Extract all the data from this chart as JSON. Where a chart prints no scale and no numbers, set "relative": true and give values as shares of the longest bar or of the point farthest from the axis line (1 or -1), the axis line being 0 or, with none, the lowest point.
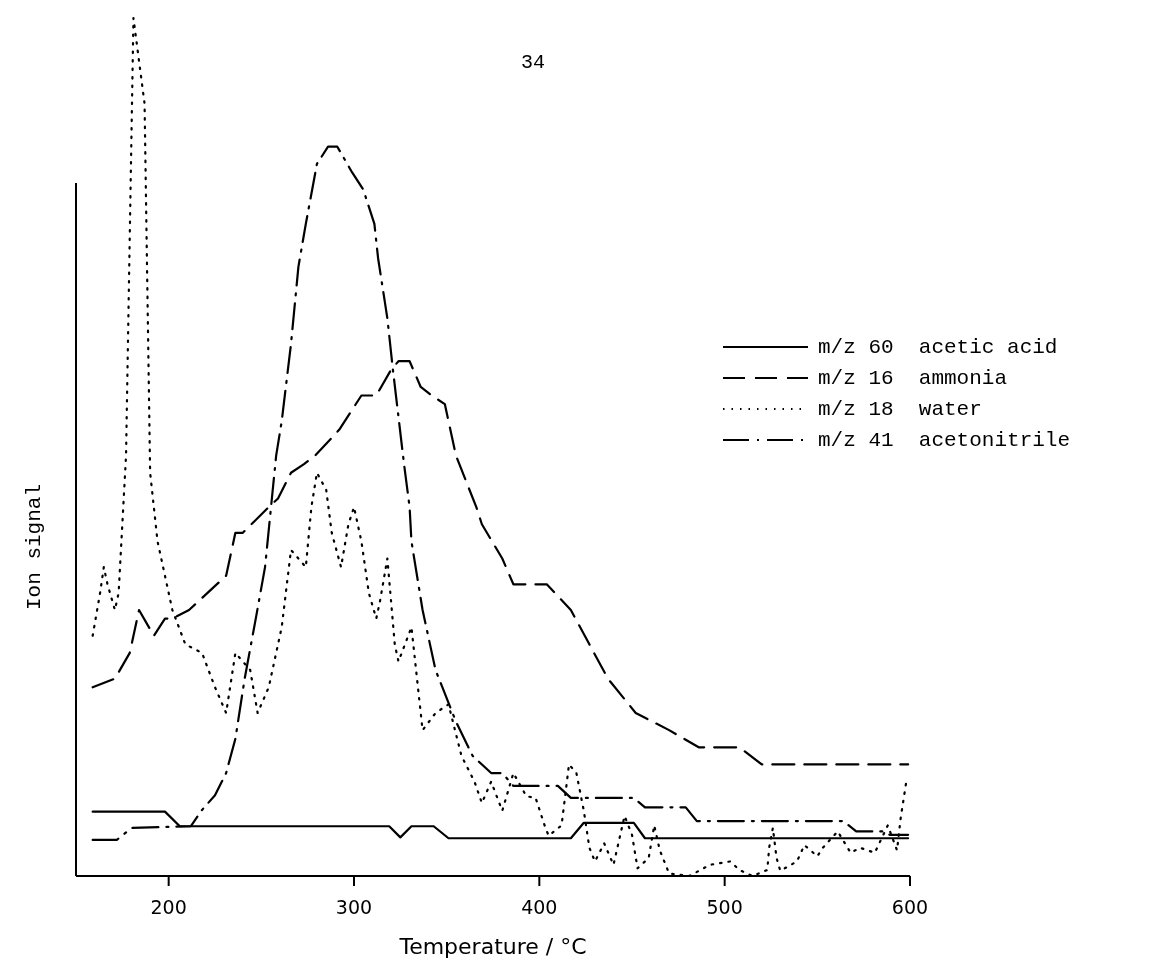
{
  "chart_data": {
    "type": "line",
    "xlabel": "Temperature / °C",
    "ylabel": "Ion signal",
    "annotations": [
      "34"
    ],
    "relative": true,
    "xlim": [
      150,
      600
    ],
    "xticks": [
      200,
      300,
      400,
      500,
      600
    ],
    "legend": "right",
    "grid": false,
    "marker": "none",
    "series": [
      {
        "name": "m/z 60  acetic acid",
        "color": "#000000",
        "line_style": "solid",
        "x": [
          159,
          198,
          206,
          319,
          325,
          331,
          343,
          351,
          417,
          424,
          451,
          457,
          599
        ],
        "values": [
          0.075,
          0.075,
          0.058,
          0.058,
          0.045,
          0.058,
          0.058,
          0.044,
          0.044,
          0.062,
          0.062,
          0.044,
          0.044
        ]
      },
      {
        "name": "m/z 16  ammonia",
        "color": "#000000",
        "line_style": "dashed",
        "x": [
          159,
          171,
          179,
          184,
          192,
          198,
          202,
          211,
          231,
          236,
          240,
          254,
          259,
          266,
          273,
          279,
          292,
          304,
          312,
          320,
          324,
          330,
          336,
          342,
          349,
          355,
          366,
          369,
          380,
          386,
          404,
          417,
          427,
          437,
          452,
          470,
          486,
          508,
          520,
          599
        ],
        "values": [
          0.22,
          0.23,
          0.26,
          0.31,
          0.28,
          0.3,
          0.3,
          0.31,
          0.35,
          0.4,
          0.4,
          0.43,
          0.44,
          0.47,
          0.48,
          0.49,
          0.52,
          0.56,
          0.56,
          0.59,
          0.6,
          0.6,
          0.57,
          0.56,
          0.55,
          0.49,
          0.43,
          0.41,
          0.37,
          0.34,
          0.34,
          0.31,
          0.27,
          0.23,
          0.19,
          0.17,
          0.15,
          0.15,
          0.13,
          0.13
        ]
      },
      {
        "name": "m/z 18  water",
        "color": "#000000",
        "line_style": "dotted",
        "x": [
          159,
          163,
          165,
          167,
          171,
          173,
          177,
          181,
          187,
          190,
          194,
          202,
          209,
          218,
          225,
          231,
          236,
          240,
          244,
          248,
          254,
          261,
          266,
          270,
          274,
          277,
          280,
          285,
          288,
          293,
          297,
          300,
          304,
          308,
          312,
          314,
          318,
          322,
          324,
          331,
          334,
          337,
          344,
          351,
          358,
          365,
          369,
          374,
          380,
          386,
          393,
          398,
          403,
          405,
          412,
          416,
          420,
          424,
          427,
          430,
          435,
          440,
          446,
          450,
          453,
          459,
          462,
          465,
          470,
          481,
          492,
          503,
          508,
          515,
          523,
          524,
          526,
          528,
          530,
          539,
          543,
          550,
          553,
          561,
          568,
          573,
          581,
          588,
          593,
          595,
          598
        ],
        "values": [
          0.28,
          0.33,
          0.36,
          0.34,
          0.31,
          0.33,
          0.49,
          1,
          0.9,
          0.47,
          0.39,
          0.31,
          0.27,
          0.26,
          0.22,
          0.19,
          0.26,
          0.25,
          0.24,
          0.19,
          0.22,
          0.29,
          0.38,
          0.37,
          0.36,
          0.43,
          0.47,
          0.45,
          0.4,
          0.36,
          0.41,
          0.43,
          0.39,
          0.33,
          0.3,
          0.32,
          0.37,
          0.27,
          0.25,
          0.29,
          0.23,
          0.17,
          0.19,
          0.2,
          0.14,
          0.11,
          0.085,
          0.11,
          0.076,
          0.12,
          0.093,
          0.091,
          0.058,
          0.047,
          0.059,
          0.13,
          0.12,
          0.076,
          0.033,
          0.017,
          0.038,
          0.013,
          0.07,
          0.048,
          0.009,
          0.021,
          0.059,
          0.03,
          0.003,
          0,
          0.013,
          0.017,
          0.007,
          0,
          0.007,
          0.033,
          0.056,
          0.021,
          0.006,
          0.017,
          0.036,
          0.023,
          0.033,
          0.052,
          0.027,
          0.033,
          0.027,
          0.059,
          0.03,
          0.068,
          0.11
        ]
      },
      {
        "name": "m/z 41  acetonitrile",
        "color": "#000000",
        "line_style": "dashdot",
        "x": [
          159,
          172,
          180,
          212,
          218,
          225,
          231,
          236,
          241,
          247,
          252,
          258,
          261,
          266,
          270,
          274,
          280,
          286,
          291,
          299,
          305,
          311,
          313,
          318,
          321,
          327,
          330,
          331,
          337,
          344,
          355,
          364,
          374,
          380,
          386,
          410,
          417,
          451,
          457,
          479,
          485,
          564,
          571,
          586,
          589,
          599
        ],
        "values": [
          0.042,
          0.042,
          0.056,
          0.058,
          0.077,
          0.094,
          0.12,
          0.16,
          0.23,
          0.3,
          0.36,
          0.49,
          0.53,
          0.62,
          0.71,
          0.76,
          0.83,
          0.85,
          0.85,
          0.82,
          0.8,
          0.76,
          0.72,
          0.65,
          0.59,
          0.48,
          0.43,
          0.39,
          0.31,
          0.24,
          0.18,
          0.14,
          0.12,
          0.12,
          0.105,
          0.105,
          0.091,
          0.091,
          0.08,
          0.08,
          0.064,
          0.064,
          0.052,
          0.052,
          0.048,
          0.048
        ]
      }
    ]
  }
}
